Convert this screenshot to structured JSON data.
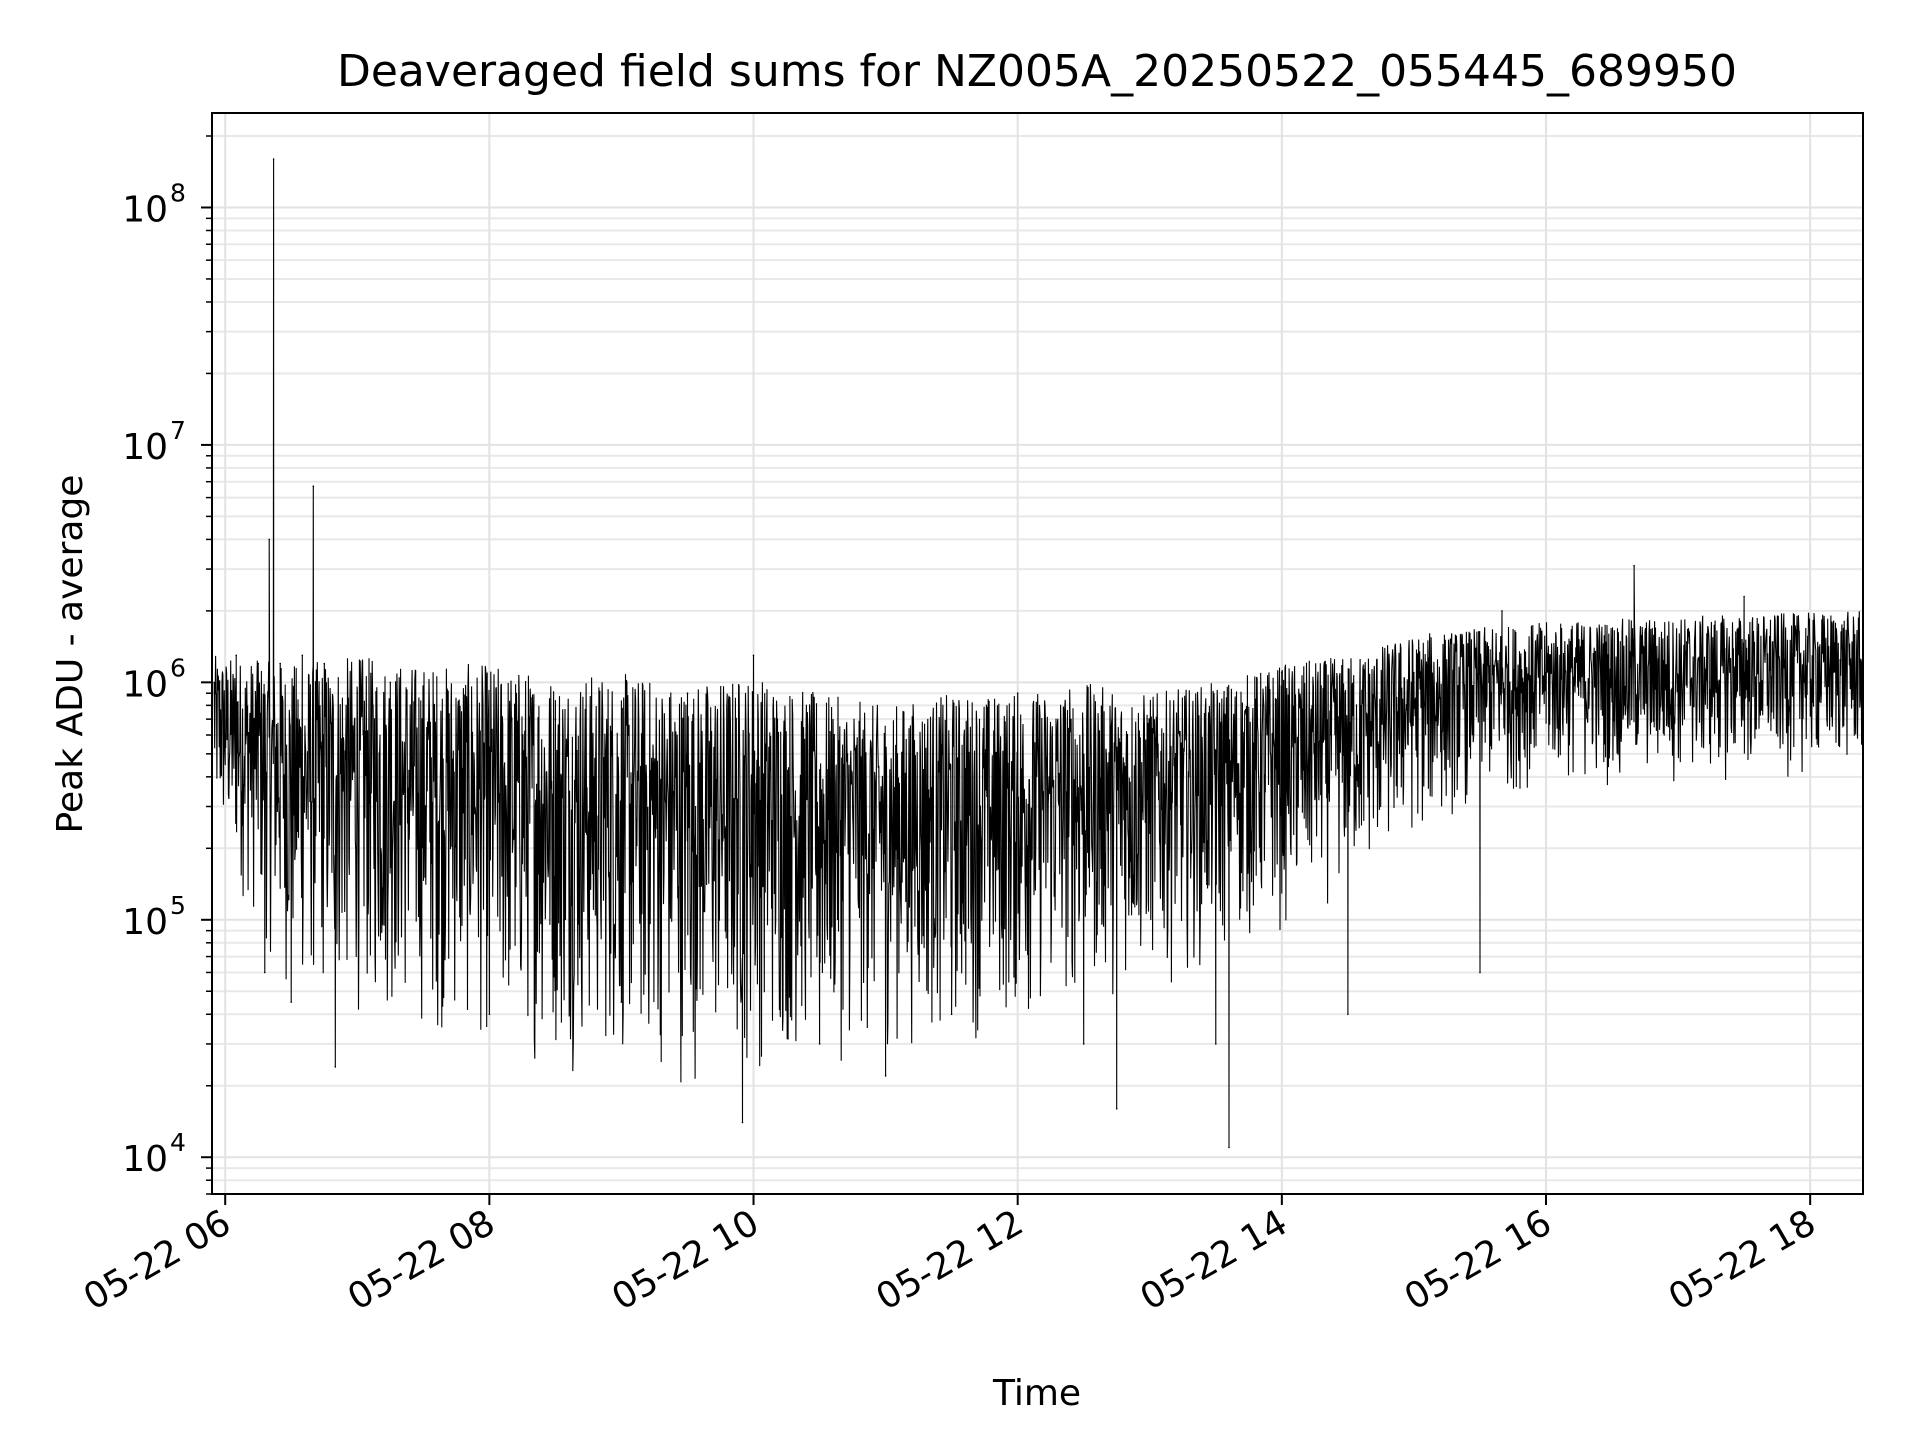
{
  "chart_data": {
    "type": "line",
    "title": "Deaveraged field sums for NZ005A_20250522_055445_689950",
    "xlabel": "Time",
    "ylabel": "Peak ADU - average",
    "xscale": "time",
    "yscale": "log",
    "grid": true,
    "legend": "none",
    "line_color": "#000000",
    "xlim": [
      "2025-05-22 05:54",
      "2025-05-22 18:24"
    ],
    "ylim": [
      7000,
      250000000
    ],
    "x_ticks": [
      {
        "value": "2025-05-22 06:00",
        "label": "05-22 06"
      },
      {
        "value": "2025-05-22 08:00",
        "label": "05-22 08"
      },
      {
        "value": "2025-05-22 10:00",
        "label": "05-22 10"
      },
      {
        "value": "2025-05-22 12:00",
        "label": "05-22 12"
      },
      {
        "value": "2025-05-22 14:00",
        "label": "05-22 14"
      },
      {
        "value": "2025-05-22 16:00",
        "label": "05-22 16"
      },
      {
        "value": "2025-05-22 18:00",
        "label": "05-22 18"
      }
    ],
    "y_ticks": [
      {
        "value": 10000,
        "label": "10",
        "exponent": "4"
      },
      {
        "value": 100000,
        "label": "10",
        "exponent": "5"
      },
      {
        "value": 1000000,
        "label": "10",
        "exponent": "6"
      },
      {
        "value": 10000000,
        "label": "10",
        "exponent": "7"
      },
      {
        "value": 100000000,
        "label": "10",
        "exponent": "8"
      }
    ],
    "series": [
      {
        "x": [
          "2025-05-22 05:55",
          "2025-05-22 06:00",
          "2025-05-22 06:05",
          "2025-05-22 06:10",
          "2025-05-22 06:15",
          "2025-05-22 06:18",
          "2025-05-22 06:20",
          "2025-05-22 06:22",
          "2025-05-22 06:25",
          "2025-05-22 06:30",
          "2025-05-22 06:35",
          "2025-05-22 06:40",
          "2025-05-22 06:45",
          "2025-05-22 06:50",
          "2025-05-22 07:00",
          "2025-05-22 07:15",
          "2025-05-22 07:30",
          "2025-05-22 07:45",
          "2025-05-22 08:00",
          "2025-05-22 08:30",
          "2025-05-22 09:00",
          "2025-05-22 09:30",
          "2025-05-22 09:55",
          "2025-05-22 10:00",
          "2025-05-22 10:30",
          "2025-05-22 11:00",
          "2025-05-22 11:30",
          "2025-05-22 12:00",
          "2025-05-22 12:30",
          "2025-05-22 12:45",
          "2025-05-22 13:00",
          "2025-05-22 13:30",
          "2025-05-22 13:36",
          "2025-05-22 14:00",
          "2025-05-22 14:30",
          "2025-05-22 15:00",
          "2025-05-22 15:30",
          "2025-05-22 15:40",
          "2025-05-22 16:00",
          "2025-05-22 16:30",
          "2025-05-22 16:40",
          "2025-05-22 17:00",
          "2025-05-22 17:30",
          "2025-05-22 18:00",
          "2025-05-22 18:20"
        ],
        "y": [
          1000000,
          600000,
          1300000,
          600000,
          1200000,
          60000,
          4000000,
          160000000,
          1200000,
          45000,
          1300000,
          6700000,
          1200000,
          24000,
          900000,
          1000000,
          800000,
          600000,
          40000,
          700000,
          45000,
          900000,
          14000,
          1300000,
          30000,
          22000,
          40000,
          900000,
          30000,
          16000,
          700000,
          30000,
          11000,
          1100000,
          40000,
          1100000,
          60000,
          2000000,
          1100000,
          900000,
          3100000,
          800000,
          2300000,
          1000000,
          800000
        ],
        "envelope_upper": [
          1300000,
          1200000,
          1300000,
          1200000,
          1200000,
          1100000,
          1100000,
          1000000,
          1100000,
          900000,
          800000,
          900000,
          900000,
          1000000,
          900000,
          1000000,
          1200000,
          1300000,
          1600000,
          1700000,
          1800000,
          1900000,
          2000000
        ],
        "envelope_lower": [
          200000,
          40000,
          35000,
          30000,
          25000,
          22000,
          20000,
          18000,
          20000,
          22000,
          25000,
          28000,
          30000,
          40000,
          50000,
          60000,
          80000,
          120000,
          200000,
          300000,
          350000,
          350000,
          400000
        ],
        "envelope_x": [
          "2025-05-22 05:55",
          "2025-05-22 06:30",
          "2025-05-22 07:00",
          "2025-05-22 07:30",
          "2025-05-22 08:00",
          "2025-05-22 08:30",
          "2025-05-22 09:00",
          "2025-05-22 09:30",
          "2025-05-22 10:00",
          "2025-05-22 10:30",
          "2025-05-22 11:00",
          "2025-05-22 11:30",
          "2025-05-22 12:00",
          "2025-05-22 12:30",
          "2025-05-22 13:00",
          "2025-05-22 13:30",
          "2025-05-22 14:00",
          "2025-05-22 14:30",
          "2025-05-22 15:00",
          "2025-05-22 15:30",
          "2025-05-22 16:00",
          "2025-05-22 17:00",
          "2025-05-22 18:24"
        ]
      }
    ]
  }
}
